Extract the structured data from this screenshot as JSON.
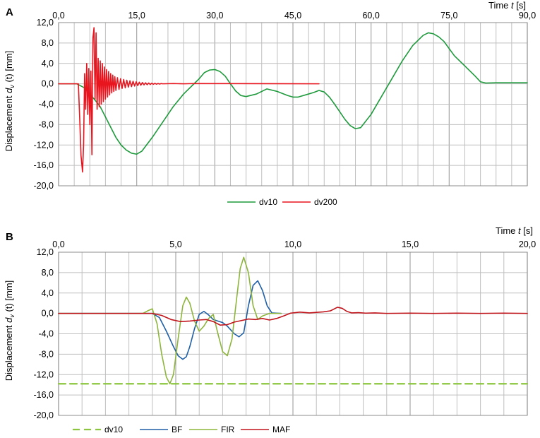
{
  "chart_data": [
    {
      "type": "line",
      "panel_label": "A",
      "xlabel_prefix": "Time ",
      "xlabel_var": "t",
      "xlabel_unit": " [s]",
      "ylabel_prefix": "Displacement  ",
      "ylabel_var": "d",
      "ylabel_sub": "v",
      "ylabel_suffix": " (t) [mm]",
      "xlim": [
        0,
        90
      ],
      "ylim": [
        -20,
        12
      ],
      "x_major_ticks": [
        0,
        15,
        30,
        45,
        60,
        75,
        90
      ],
      "x_major_labels": [
        "0,0",
        "15,0",
        "30,0",
        "45,0",
        "60,0",
        "75,0",
        "90,0"
      ],
      "x_minor_step": 3,
      "y_ticks": [
        12,
        8,
        4,
        0,
        -4,
        -8,
        -12,
        -16,
        -20
      ],
      "y_labels": [
        "12,0",
        "8,0",
        "4,0",
        "0,0",
        "-4,0",
        "-8,0",
        "-12,0",
        "-16,0",
        "-20,0"
      ],
      "grid": true,
      "legend_position": "bottom-center",
      "series": [
        {
          "name": "dv10",
          "color": "#1e9a3c",
          "dash": "solid",
          "x": [
            0,
            3.5,
            5,
            6,
            7,
            8,
            9,
            10,
            11,
            12,
            13,
            14,
            15,
            16,
            18,
            20,
            22,
            24,
            26,
            27,
            28,
            29,
            30,
            31,
            32,
            33,
            34,
            35,
            36,
            38,
            40,
            42,
            44,
            45,
            46,
            48,
            49,
            50,
            51,
            52,
            53,
            54,
            55,
            56,
            57,
            58,
            60,
            62,
            64,
            66,
            68,
            70,
            71,
            72,
            73,
            74,
            76,
            78,
            80,
            81,
            82,
            84,
            90
          ],
          "y": [
            0,
            0,
            -0.8,
            -2,
            -3.2,
            -4.5,
            -6.5,
            -8.5,
            -10.5,
            -12,
            -13,
            -13.6,
            -13.8,
            -13.2,
            -10.5,
            -7.5,
            -4.5,
            -2,
            0,
            1,
            2.2,
            2.7,
            2.8,
            2.4,
            1.5,
            0,
            -1.4,
            -2.3,
            -2.5,
            -2,
            -1,
            -1.5,
            -2.3,
            -2.6,
            -2.6,
            -2,
            -1.7,
            -1.3,
            -1.6,
            -2.6,
            -4,
            -5.5,
            -7,
            -8.2,
            -8.8,
            -8.6,
            -6,
            -2.5,
            1,
            4.5,
            7.5,
            9.5,
            10,
            9.8,
            9.2,
            8.3,
            5.5,
            3.5,
            1.5,
            0.4,
            0.15,
            0.2,
            0.2
          ]
        },
        {
          "name": "dv200",
          "color": "#e8141e",
          "dash": "solid",
          "x": [
            0,
            3.8,
            4.1,
            4.3,
            4.6,
            4.8,
            5.0,
            5.2,
            5.4,
            5.6,
            5.8,
            6.0,
            6.2,
            6.4,
            6.6,
            6.8,
            7.0,
            7.2,
            7.4,
            7.6,
            7.8,
            8.0,
            8.2,
            8.4,
            8.6,
            8.8,
            9.0,
            9.2,
            9.4,
            9.6,
            9.8,
            10.0,
            10.2,
            10.4,
            10.6,
            10.8,
            11.0,
            11.3,
            11.6,
            11.9,
            12.2,
            12.5,
            12.8,
            13.1,
            13.4,
            13.7,
            14.0,
            14.3,
            14.6,
            14.9,
            15.2,
            15.5,
            15.8,
            16.1,
            16.4,
            16.7,
            17.0,
            17.3,
            17.6,
            17.9,
            18.2,
            18.5,
            18.8,
            19.1,
            19.4,
            19.7,
            20,
            22,
            24,
            26,
            50
          ],
          "y": [
            0,
            0,
            -8,
            -14,
            -17.3,
            -12,
            2,
            -5,
            4,
            -6,
            3,
            -8,
            2.5,
            -13.9,
            9,
            11,
            -3,
            10,
            -5,
            5,
            -4.5,
            4.5,
            -4,
            4,
            -3.5,
            3.3,
            -3,
            2.8,
            -2.6,
            2.4,
            -2.2,
            2.0,
            -1.8,
            1.7,
            -1.5,
            1.4,
            -1.3,
            1.2,
            -1.1,
            1.0,
            -0.9,
            0.85,
            -0.8,
            0.7,
            -0.65,
            0.6,
            -0.55,
            0.5,
            -0.45,
            0.4,
            -0.36,
            0.32,
            -0.28,
            0.25,
            -0.22,
            0.2,
            -0.18,
            0.16,
            -0.14,
            0.12,
            -0.1,
            0.09,
            -0.08,
            0.07,
            -0.06,
            0.05,
            0,
            0.05,
            0,
            0.05,
            0
          ]
        }
      ]
    },
    {
      "type": "line",
      "panel_label": "B",
      "xlabel_prefix": "Time ",
      "xlabel_var": "t",
      "xlabel_unit": " [s]",
      "ylabel_prefix": "Displacement  ",
      "ylabel_var": "d",
      "ylabel_sub": "v",
      "ylabel_suffix": " (t) [mm]",
      "xlim": [
        0,
        20
      ],
      "ylim": [
        -20,
        12
      ],
      "x_major_ticks": [
        0,
        5,
        10,
        15,
        20
      ],
      "x_major_labels": [
        "0,0",
        "5,0",
        "10,0",
        "15,0",
        "20,0"
      ],
      "x_minor_step": 1,
      "y_ticks": [
        12,
        8,
        4,
        0,
        -4,
        -8,
        -12,
        -16,
        -20
      ],
      "y_labels": [
        "12,0",
        "8,0",
        "4,0",
        "0,0",
        "-4,0",
        "-8,0",
        "-12,0",
        "-16,0",
        "-20,0"
      ],
      "grid": true,
      "legend_position": "bottom-center",
      "series": [
        {
          "name": "dv10",
          "color": "#8cc63f",
          "dash": "dashed",
          "x": [
            0,
            20
          ],
          "y": [
            -13.8,
            -13.8
          ]
        },
        {
          "name": "BF",
          "color": "#1f5fa6",
          "dash": "solid",
          "x": [
            0,
            4.0,
            4.3,
            4.6,
            4.9,
            5.1,
            5.3,
            5.45,
            5.6,
            5.8,
            6.0,
            6.2,
            6.4,
            6.6,
            6.8,
            7.0,
            7.2,
            7.5,
            7.7,
            7.9,
            8.1,
            8.3,
            8.5,
            8.7,
            8.9,
            9.1,
            9.5
          ],
          "y": [
            0,
            0,
            -0.8,
            -3.5,
            -6.5,
            -8.3,
            -9.0,
            -8.5,
            -6.5,
            -3,
            -0.2,
            0.4,
            -0.3,
            -1.2,
            -1.5,
            -1.8,
            -2.5,
            -4,
            -4.6,
            -3.8,
            1.5,
            5.5,
            6.4,
            4.5,
            1.5,
            0.1,
            0
          ]
        },
        {
          "name": "FIR",
          "color": "#8db53c",
          "dash": "solid",
          "x": [
            0,
            3.6,
            3.8,
            4.0,
            4.2,
            4.4,
            4.6,
            4.75,
            4.9,
            5.1,
            5.3,
            5.45,
            5.6,
            5.8,
            6.0,
            6.2,
            6.4,
            6.6,
            6.8,
            7.0,
            7.2,
            7.4,
            7.6,
            7.75,
            7.9,
            8.1,
            8.3,
            8.5,
            8.7,
            9.0,
            9.5
          ],
          "y": [
            0,
            0,
            0.5,
            0.9,
            -2,
            -8,
            -12.5,
            -13.8,
            -12,
            -5,
            1.5,
            3.2,
            2,
            -1.5,
            -3.5,
            -2.5,
            -1,
            -0.2,
            -4,
            -7.5,
            -8.3,
            -5,
            3,
            8.8,
            11,
            8,
            1.5,
            -1.2,
            -0.5,
            0,
            0
          ]
        },
        {
          "name": "MAF",
          "color": "#c0141b",
          "dash": "solid",
          "x": [
            0,
            4.0,
            4.4,
            4.8,
            5.2,
            5.6,
            6.0,
            6.3,
            6.6,
            6.9,
            7.2,
            7.5,
            7.8,
            8.1,
            8.4,
            8.7,
            9.0,
            9.3,
            9.6,
            9.9,
            10.3,
            10.7,
            11.0,
            11.3,
            11.6,
            11.9,
            12.1,
            12.3,
            12.5,
            12.8,
            13.1,
            13.5,
            14,
            15,
            16,
            17,
            18,
            19,
            20
          ],
          "y": [
            0,
            0,
            -0.4,
            -1.2,
            -1.6,
            -1.5,
            -1.3,
            -1.2,
            -1.6,
            -2.3,
            -2.2,
            -1.7,
            -1.4,
            -1.1,
            -1.2,
            -1.0,
            -1.3,
            -1.0,
            -0.5,
            0.05,
            0.25,
            0.1,
            0.2,
            0.3,
            0.5,
            1.2,
            1.0,
            0.4,
            0.1,
            0.15,
            0.05,
            0.1,
            0,
            0.05,
            0,
            0.05,
            0,
            0.05,
            0
          ]
        }
      ]
    }
  ]
}
